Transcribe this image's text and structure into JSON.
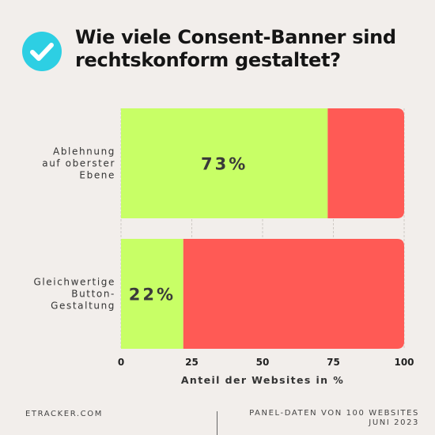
{
  "title": "Wie viele Consent-Banner sind rechtskonform gestaltet?",
  "icon": "check-circle-icon",
  "colors": {
    "accent": "#2dcfe3",
    "yes": "#c8ff66",
    "no": "#ff5a55",
    "background": "#f2eeeb"
  },
  "chart_data": {
    "type": "bar",
    "orientation": "horizontal",
    "stacked": true,
    "categories": [
      [
        "Ablehnung",
        "auf oberster",
        "Ebene"
      ],
      [
        "Gleichwertige",
        "Button-",
        "Gestaltung"
      ]
    ],
    "series": [
      {
        "values": [
          73,
          22
        ],
        "labels": [
          "73%",
          "22%"
        ],
        "color": "#c8ff66"
      },
      {
        "values": [
          27,
          78
        ],
        "color": "#ff5a55"
      }
    ],
    "xlabel": "Anteil der Websites in %",
    "ylabel": "",
    "xlim": [
      0,
      100
    ],
    "xticks": [
      0,
      25,
      50,
      75,
      100
    ],
    "grid": true
  },
  "footer": {
    "left": "ETRACKER.COM",
    "right_line1": "PANEL-DATEN VON 100 WEBSITES",
    "right_line2": "JUNI 2023"
  }
}
